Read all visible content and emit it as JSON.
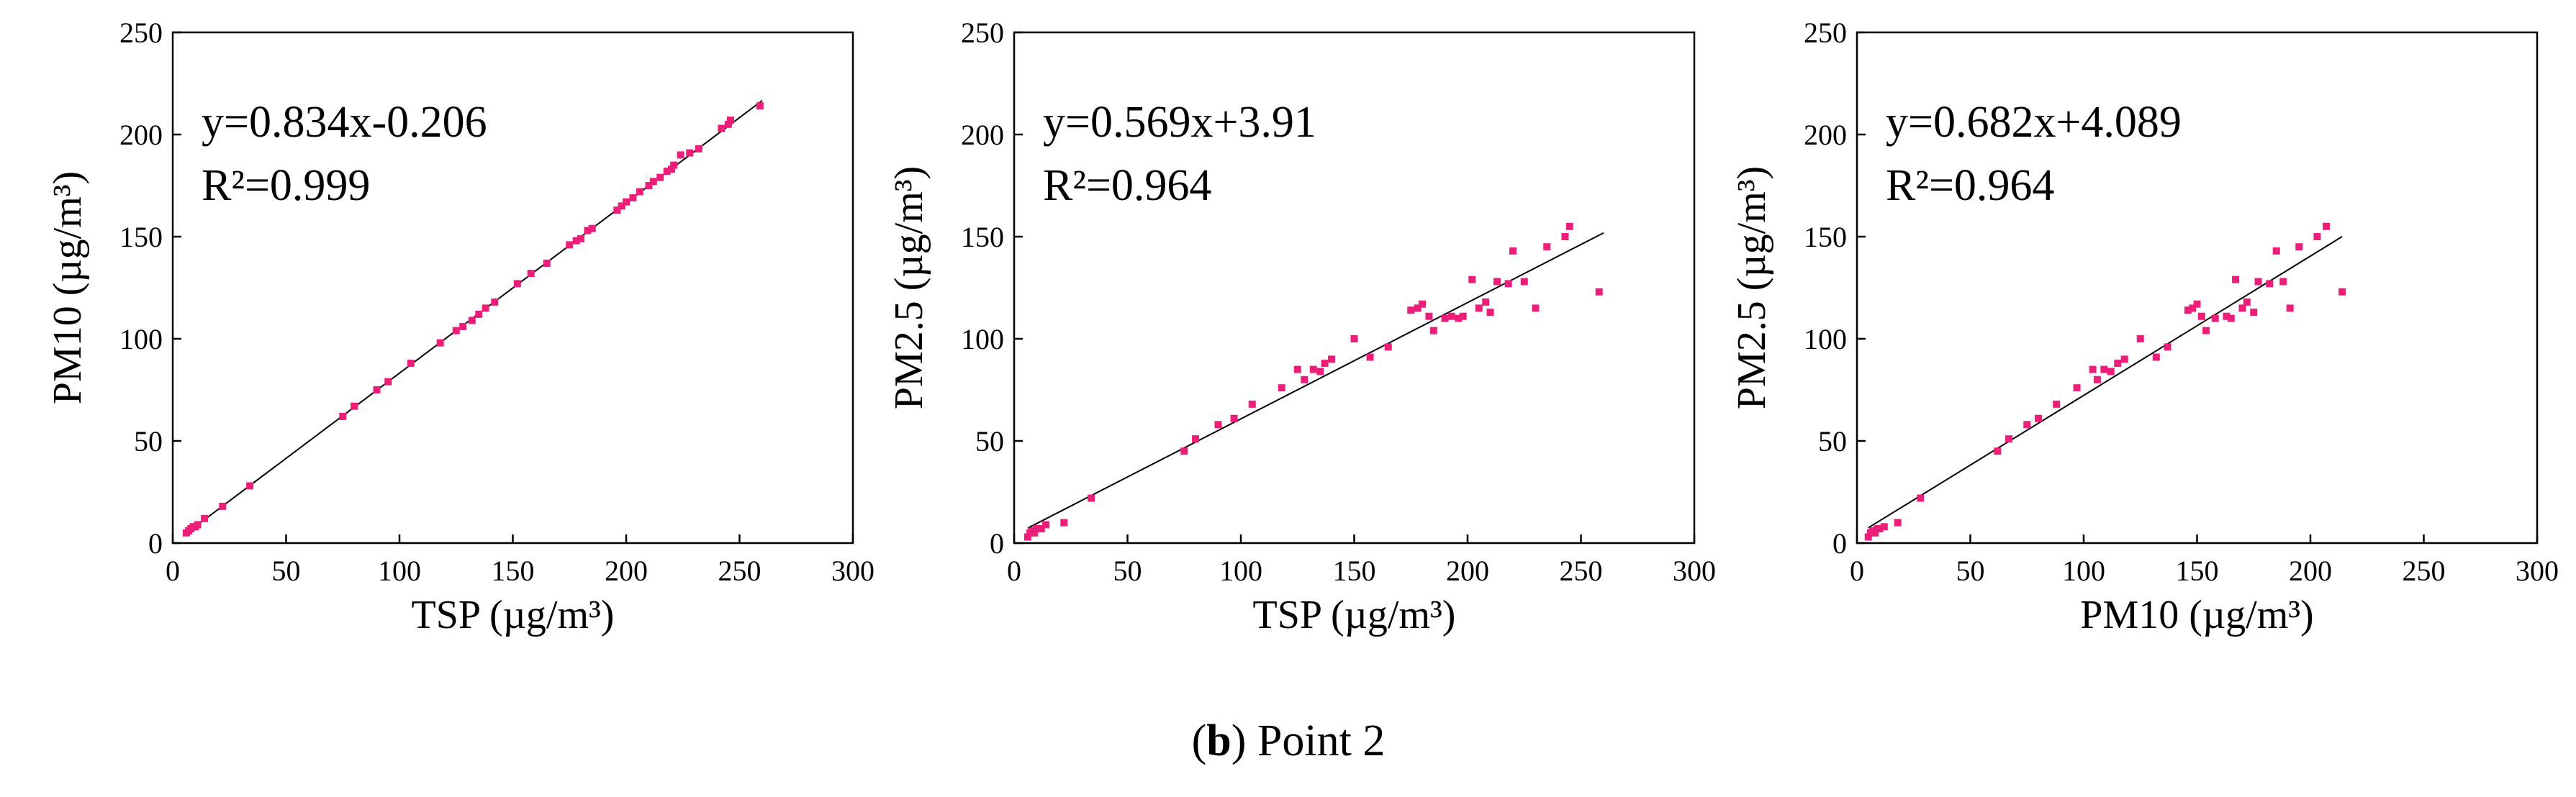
{
  "caption": {
    "letter": "b",
    "open": "(",
    "close": ")",
    "text": " Point 2"
  },
  "colors": {
    "points": "#ec1e79",
    "axes": "#000000",
    "fit_line": "#000000"
  },
  "chart_data": [
    {
      "type": "scatter",
      "title": "",
      "xlabel": "TSP (µg/m³)",
      "ylabel": "PM10 (µg/m³)",
      "xlim": [
        0,
        300
      ],
      "ylim": [
        0,
        250
      ],
      "xticks": [
        0,
        50,
        100,
        150,
        200,
        250,
        300
      ],
      "yticks": [
        0,
        50,
        100,
        150,
        200,
        250
      ],
      "grid": false,
      "equation": "y=0.834x-0.206",
      "r2": "R²=0.999",
      "fit": {
        "slope": 0.834,
        "intercept": -0.206,
        "x_range": [
          6,
          260
        ]
      },
      "points": [
        [
          6,
          5
        ],
        [
          7,
          6
        ],
        [
          8,
          7
        ],
        [
          9,
          8
        ],
        [
          10,
          8
        ],
        [
          11,
          9
        ],
        [
          14,
          12
        ],
        [
          22,
          18
        ],
        [
          34,
          28
        ],
        [
          75,
          62
        ],
        [
          80,
          67
        ],
        [
          90,
          75
        ],
        [
          95,
          79
        ],
        [
          105,
          88
        ],
        [
          118,
          98
        ],
        [
          125,
          104
        ],
        [
          128,
          106
        ],
        [
          132,
          109
        ],
        [
          135,
          112
        ],
        [
          138,
          115
        ],
        [
          142,
          118
        ],
        [
          152,
          127
        ],
        [
          158,
          132
        ],
        [
          165,
          137
        ],
        [
          175,
          146
        ],
        [
          178,
          148
        ],
        [
          180,
          149
        ],
        [
          183,
          153
        ],
        [
          185,
          154
        ],
        [
          196,
          163
        ],
        [
          198,
          165
        ],
        [
          200,
          167
        ],
        [
          203,
          169
        ],
        [
          206,
          172
        ],
        [
          210,
          175
        ],
        [
          212,
          177
        ],
        [
          215,
          179
        ],
        [
          218,
          182
        ],
        [
          220,
          183
        ],
        [
          221,
          185
        ],
        [
          224,
          190
        ],
        [
          228,
          191
        ],
        [
          232,
          193
        ],
        [
          242,
          203
        ],
        [
          245,
          205
        ],
        [
          246,
          207
        ],
        [
          259,
          214
        ]
      ]
    },
    {
      "type": "scatter",
      "title": "",
      "xlabel": "TSP (µg/m³)",
      "ylabel": "PM2.5 (µg/m³)",
      "xlim": [
        0,
        300
      ],
      "ylim": [
        0,
        250
      ],
      "xticks": [
        0,
        50,
        100,
        150,
        200,
        250,
        300
      ],
      "yticks": [
        0,
        50,
        100,
        150,
        200,
        250
      ],
      "grid": false,
      "equation": "y=0.569x+3.91",
      "r2": "R²=0.964",
      "fit": {
        "slope": 0.569,
        "intercept": 3.91,
        "x_range": [
          6,
          260
        ]
      },
      "points": [
        [
          6,
          3
        ],
        [
          7,
          5
        ],
        [
          8,
          6
        ],
        [
          9,
          5
        ],
        [
          10,
          7
        ],
        [
          12,
          7
        ],
        [
          14,
          9
        ],
        [
          22,
          10
        ],
        [
          34,
          22
        ],
        [
          75,
          45
        ],
        [
          80,
          51
        ],
        [
          90,
          58
        ],
        [
          97,
          61
        ],
        [
          105,
          68
        ],
        [
          118,
          76
        ],
        [
          125,
          85
        ],
        [
          128,
          80
        ],
        [
          132,
          85
        ],
        [
          135,
          84
        ],
        [
          137,
          88
        ],
        [
          140,
          90
        ],
        [
          150,
          100
        ],
        [
          157,
          91
        ],
        [
          165,
          96
        ],
        [
          175,
          114
        ],
        [
          178,
          115
        ],
        [
          180,
          117
        ],
        [
          183,
          111
        ],
        [
          185,
          104
        ],
        [
          190,
          110
        ],
        [
          193,
          111
        ],
        [
          196,
          110
        ],
        [
          198,
          111
        ],
        [
          202,
          129
        ],
        [
          205,
          115
        ],
        [
          208,
          118
        ],
        [
          210,
          113
        ],
        [
          213,
          128
        ],
        [
          218,
          127
        ],
        [
          220,
          143
        ],
        [
          225,
          128
        ],
        [
          230,
          115
        ],
        [
          235,
          145
        ],
        [
          243,
          150
        ],
        [
          245,
          155
        ],
        [
          258,
          123
        ]
      ]
    },
    {
      "type": "scatter",
      "title": "",
      "xlabel": "PM10 (µg/m³)",
      "ylabel": "PM2.5 (µg/m³)",
      "xlim": [
        0,
        300
      ],
      "ylim": [
        0,
        250
      ],
      "xticks": [
        0,
        50,
        100,
        150,
        200,
        250,
        300
      ],
      "yticks": [
        0,
        50,
        100,
        150,
        200,
        250
      ],
      "grid": false,
      "equation": "y=0.682x+4.089",
      "r2": "R²=0.964",
      "fit": {
        "slope": 0.682,
        "intercept": 4.089,
        "x_range": [
          5,
          214
        ]
      },
      "points": [
        [
          5,
          3
        ],
        [
          6,
          5
        ],
        [
          7,
          6
        ],
        [
          8,
          5
        ],
        [
          9,
          7
        ],
        [
          10,
          7
        ],
        [
          12,
          8
        ],
        [
          18,
          10
        ],
        [
          28,
          22
        ],
        [
          62,
          45
        ],
        [
          67,
          51
        ],
        [
          75,
          58
        ],
        [
          80,
          61
        ],
        [
          88,
          68
        ],
        [
          97,
          76
        ],
        [
          104,
          85
        ],
        [
          106,
          80
        ],
        [
          109,
          85
        ],
        [
          112,
          84
        ],
        [
          115,
          88
        ],
        [
          118,
          90
        ],
        [
          125,
          100
        ],
        [
          132,
          91
        ],
        [
          137,
          96
        ],
        [
          146,
          114
        ],
        [
          148,
          115
        ],
        [
          150,
          117
        ],
        [
          152,
          111
        ],
        [
          154,
          104
        ],
        [
          158,
          110
        ],
        [
          163,
          111
        ],
        [
          165,
          110
        ],
        [
          167,
          129
        ],
        [
          170,
          115
        ],
        [
          172,
          118
        ],
        [
          175,
          113
        ],
        [
          177,
          128
        ],
        [
          182,
          127
        ],
        [
          185,
          143
        ],
        [
          188,
          128
        ],
        [
          191,
          115
        ],
        [
          195,
          145
        ],
        [
          203,
          150
        ],
        [
          207,
          155
        ],
        [
          214,
          123
        ]
      ]
    }
  ]
}
